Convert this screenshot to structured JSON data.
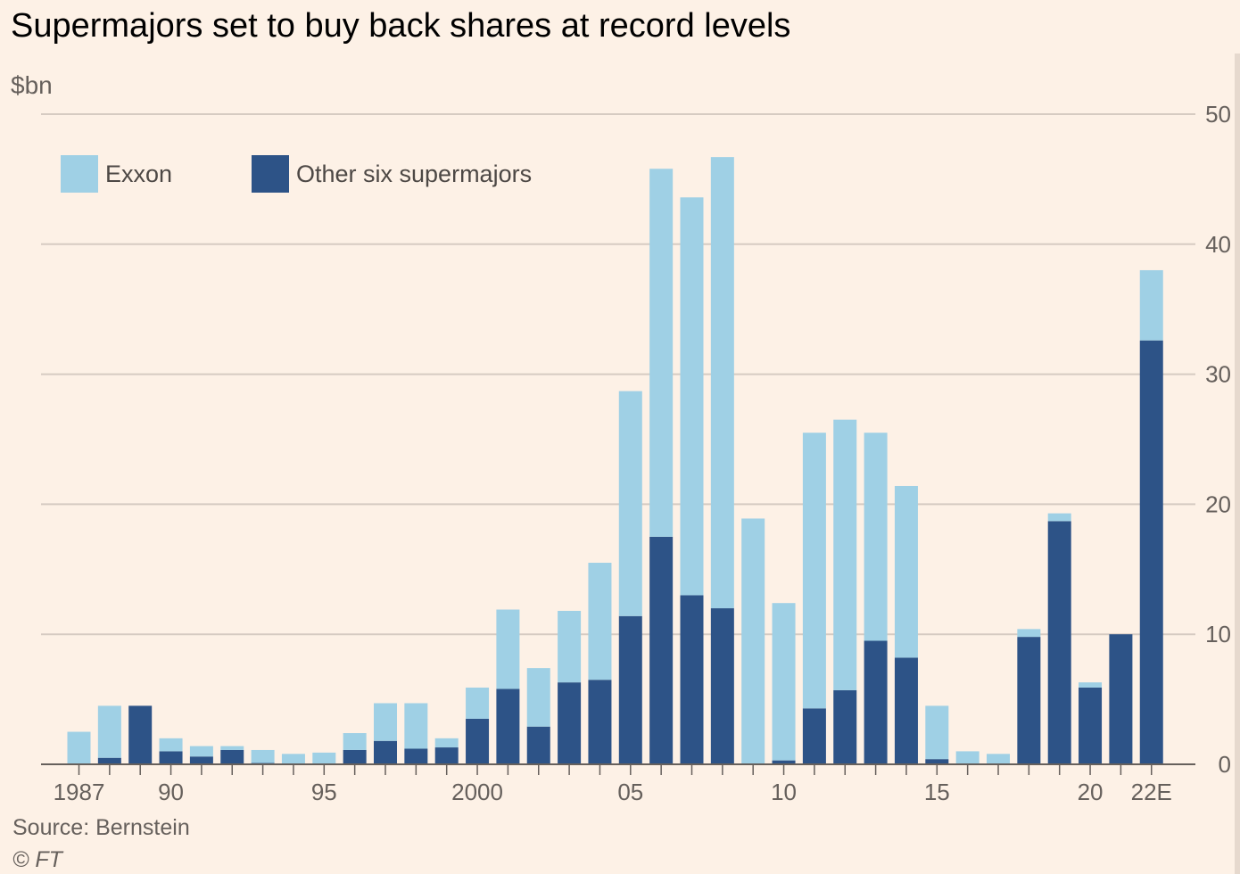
{
  "chart_data": {
    "type": "bar",
    "stacked": true,
    "title": "Supermajors set to buy back shares at record levels",
    "unit": "$bn",
    "source": "Source: Bernstein",
    "copyright": "© FT",
    "ylim": [
      0,
      50
    ],
    "yticks": [
      0,
      10,
      20,
      30,
      40,
      50
    ],
    "ytick_position": "right",
    "grid": true,
    "legend_position": "top-left",
    "categories": [
      "1987",
      "1988",
      "1989",
      "1990",
      "1991",
      "1992",
      "1993",
      "1994",
      "1995",
      "1996",
      "1997",
      "1998",
      "1999",
      "2000",
      "2001",
      "2002",
      "2003",
      "2004",
      "2005",
      "2006",
      "2007",
      "2008",
      "2009",
      "2010",
      "2011",
      "2012",
      "2013",
      "2014",
      "2015",
      "2016",
      "2017",
      "2018",
      "2019",
      "2020",
      "2021",
      "2022E"
    ],
    "xtick_labels": [
      {
        "category": "1987",
        "label": "1987"
      },
      {
        "category": "1990",
        "label": "90"
      },
      {
        "category": "1995",
        "label": "95"
      },
      {
        "category": "2000",
        "label": "2000"
      },
      {
        "category": "2005",
        "label": "05"
      },
      {
        "category": "2010",
        "label": "10"
      },
      {
        "category": "2015",
        "label": "15"
      },
      {
        "category": "2020",
        "label": "20"
      },
      {
        "category": "2022E",
        "label": "22E"
      }
    ],
    "series": [
      {
        "name": "Other six supermajors",
        "color": "#2d5387",
        "values": [
          0,
          0.5,
          4.5,
          1.0,
          0.6,
          1.1,
          0.1,
          0,
          0,
          1.1,
          1.8,
          1.2,
          1.3,
          3.5,
          5.8,
          2.9,
          6.3,
          6.5,
          11.4,
          17.5,
          13.0,
          12.0,
          0,
          0.3,
          4.3,
          5.7,
          9.5,
          8.2,
          0.4,
          0,
          0,
          9.8,
          18.7,
          5.9,
          10.0,
          32.6
        ]
      },
      {
        "name": "Exxon",
        "color": "#9fd0e5",
        "values": [
          2.5,
          4.0,
          0,
          1.0,
          0.8,
          0.3,
          1.0,
          0.8,
          0.9,
          1.3,
          2.9,
          3.5,
          0.7,
          2.4,
          6.1,
          4.5,
          5.5,
          9.0,
          17.3,
          28.3,
          30.6,
          34.7,
          18.9,
          12.1,
          21.2,
          20.8,
          16.0,
          13.2,
          4.1,
          1.0,
          0.8,
          0.6,
          0.6,
          0.4,
          0,
          5.4
        ]
      }
    ],
    "legend": [
      {
        "name": "Exxon",
        "color": "#9fd0e5"
      },
      {
        "name": "Other six supermajors",
        "color": "#2d5387"
      }
    ]
  }
}
